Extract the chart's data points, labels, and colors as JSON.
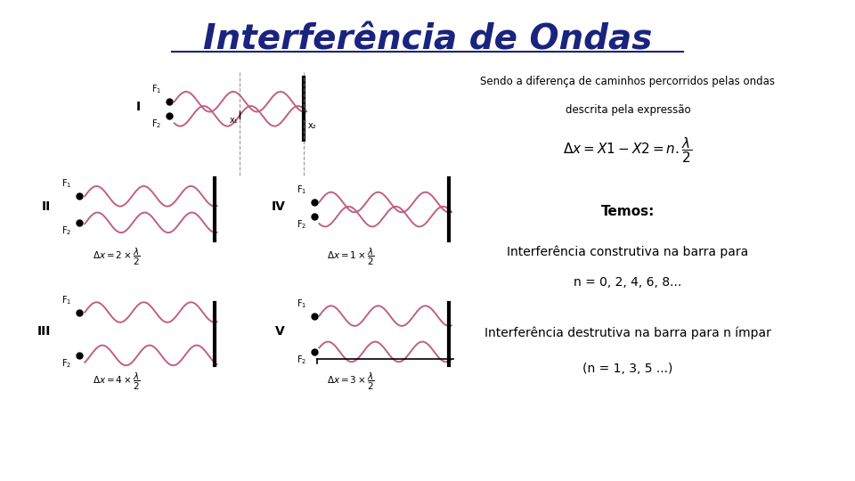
{
  "title": "Interferência de Ondas",
  "title_color": "#1a237e",
  "title_fontsize": 28,
  "bg_color": "#ffffff",
  "wave_color": "#c06080",
  "text_color": "#000000",
  "right_panel": {
    "line1": "Sendo a diferença de caminhos percorridos pelas ondas",
    "line2": "descrita pela expressão",
    "temos": "Temos:",
    "construtiva_line1": "Interferência construtiva na barra para",
    "construtiva_line2": "n = 0, 2, 4, 6, 8...",
    "destrutiva_line1": "Interferência destrutiva na barra para n ímpar",
    "destrutiva_line2": "(n = 1, 3, 5 ...)"
  }
}
